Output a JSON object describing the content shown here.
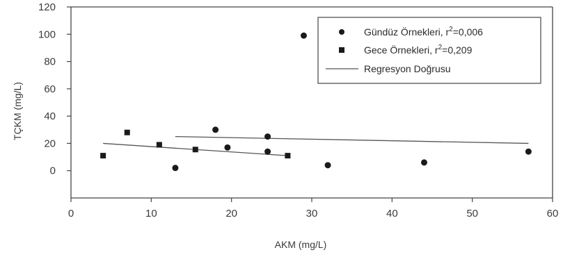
{
  "chart_data": {
    "type": "scatter",
    "xlabel": "AKM (mg/L)",
    "ylabel": "TÇKM (mg/L)",
    "xlim": [
      0,
      60
    ],
    "ylim": [
      -20,
      120
    ],
    "xticks": [
      "0",
      "10",
      "20",
      "30",
      "40",
      "50",
      "60"
    ],
    "yticks": [
      "0",
      "20",
      "40",
      "60",
      "80",
      "100",
      "120"
    ],
    "grid": false,
    "legend_position": "top-right",
    "series": [
      {
        "name": "Gündüz Örnekleri, r²=0,006",
        "legend_text": "Gündüz Örnekleri, r",
        "legend_sup": "2",
        "legend_suffix": "=0,006",
        "marker": "circle",
        "color": "#1a1a1a",
        "points": [
          [
            13,
            2
          ],
          [
            18,
            30
          ],
          [
            19.5,
            17
          ],
          [
            24.5,
            25
          ],
          [
            24.5,
            14
          ],
          [
            29,
            99
          ],
          [
            32,
            4
          ],
          [
            44,
            6
          ],
          [
            57,
            14
          ]
        ],
        "regression": [
          [
            13,
            25
          ],
          [
            57,
            20
          ]
        ]
      },
      {
        "name": "Gece Örnekleri, r²=0,209",
        "legend_text": "Gece Örnekleri, r",
        "legend_sup": "2",
        "legend_suffix": "=0,209",
        "marker": "square",
        "color": "#1a1a1a",
        "points": [
          [
            4,
            11
          ],
          [
            7,
            28
          ],
          [
            11,
            19
          ],
          [
            15.5,
            15.5
          ],
          [
            27,
            11
          ]
        ],
        "regression": [
          [
            4,
            20
          ],
          [
            27,
            11
          ]
        ]
      }
    ],
    "regression_legend": "Regresyon Doğrusu",
    "colors": {
      "marker": "#1a1a1a",
      "line": "#555555",
      "axis": "#444444"
    }
  }
}
